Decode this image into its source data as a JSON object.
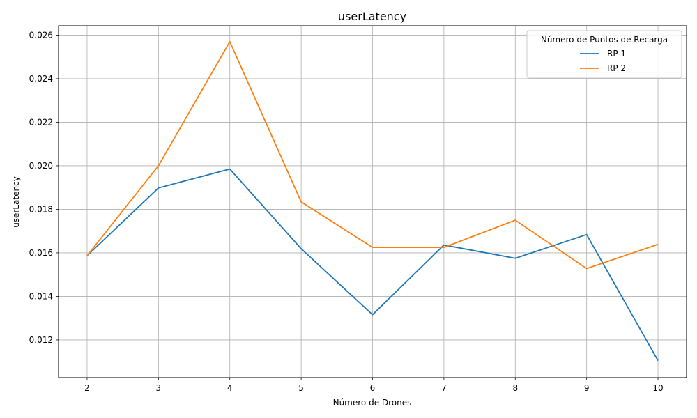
{
  "chart_data": {
    "type": "line",
    "title": "userLatency",
    "xlabel": "Número de Drones",
    "ylabel": "userLatency",
    "x": [
      2,
      3,
      4,
      5,
      6,
      7,
      8,
      9,
      10
    ],
    "xlim": [
      1.6,
      10.4
    ],
    "ylim": [
      0.01027,
      0.02643
    ],
    "yticks": [
      "0.012",
      "0.014",
      "0.016",
      "0.018",
      "0.020",
      "0.022",
      "0.024",
      "0.026"
    ],
    "grid": true,
    "legend": {
      "title": "Número de Puntos de Recarga",
      "position": "top-right"
    },
    "series": [
      {
        "name": "RP 1",
        "color": "#1f77b4",
        "values": [
          0.01587,
          0.01898,
          0.01985,
          0.01619,
          0.01316,
          0.01636,
          0.01575,
          0.01684,
          0.01105
        ]
      },
      {
        "name": "RP 2",
        "color": "#ff7f0e",
        "values": [
          0.01587,
          0.02,
          0.0257,
          0.01834,
          0.01625,
          0.01625,
          0.0175,
          0.01528,
          0.01639
        ]
      }
    ]
  }
}
